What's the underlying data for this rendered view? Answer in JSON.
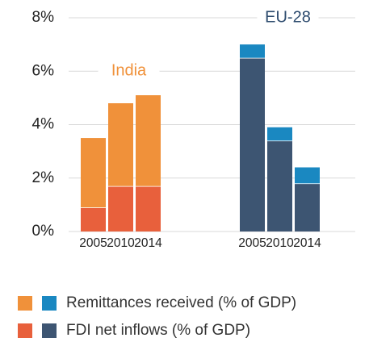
{
  "chart_data": {
    "type": "bar",
    "stacked": true,
    "groups": [
      {
        "name": "India",
        "categories": [
          "2005",
          "2010",
          "2014"
        ],
        "colors": [
          "#f0913a",
          "#e8603c"
        ],
        "label_color": "#f0913a"
      },
      {
        "name": "EU-28",
        "categories": [
          "2005",
          "2010",
          "2014"
        ],
        "colors": [
          "#1a88c1",
          "#3d5572"
        ],
        "label_color": "#2d4b6e"
      }
    ],
    "series": [
      {
        "name": "Remittances received (% of GDP)",
        "values": [
          [
            2.6,
            3.1,
            3.4
          ],
          [
            0.5,
            0.5,
            0.6
          ]
        ]
      },
      {
        "name": "FDI net inflows (% of GDP)",
        "values": [
          [
            0.9,
            1.7,
            1.7
          ],
          [
            6.5,
            3.4,
            1.8
          ]
        ]
      }
    ],
    "ylim": [
      0,
      8
    ],
    "yticks": [
      {
        "value": 0,
        "label": "0%"
      },
      {
        "value": 2,
        "label": "2%"
      },
      {
        "value": 4,
        "label": "4%"
      },
      {
        "value": 6,
        "label": "6%"
      },
      {
        "value": 8,
        "label": "8%"
      }
    ],
    "grid": true
  }
}
